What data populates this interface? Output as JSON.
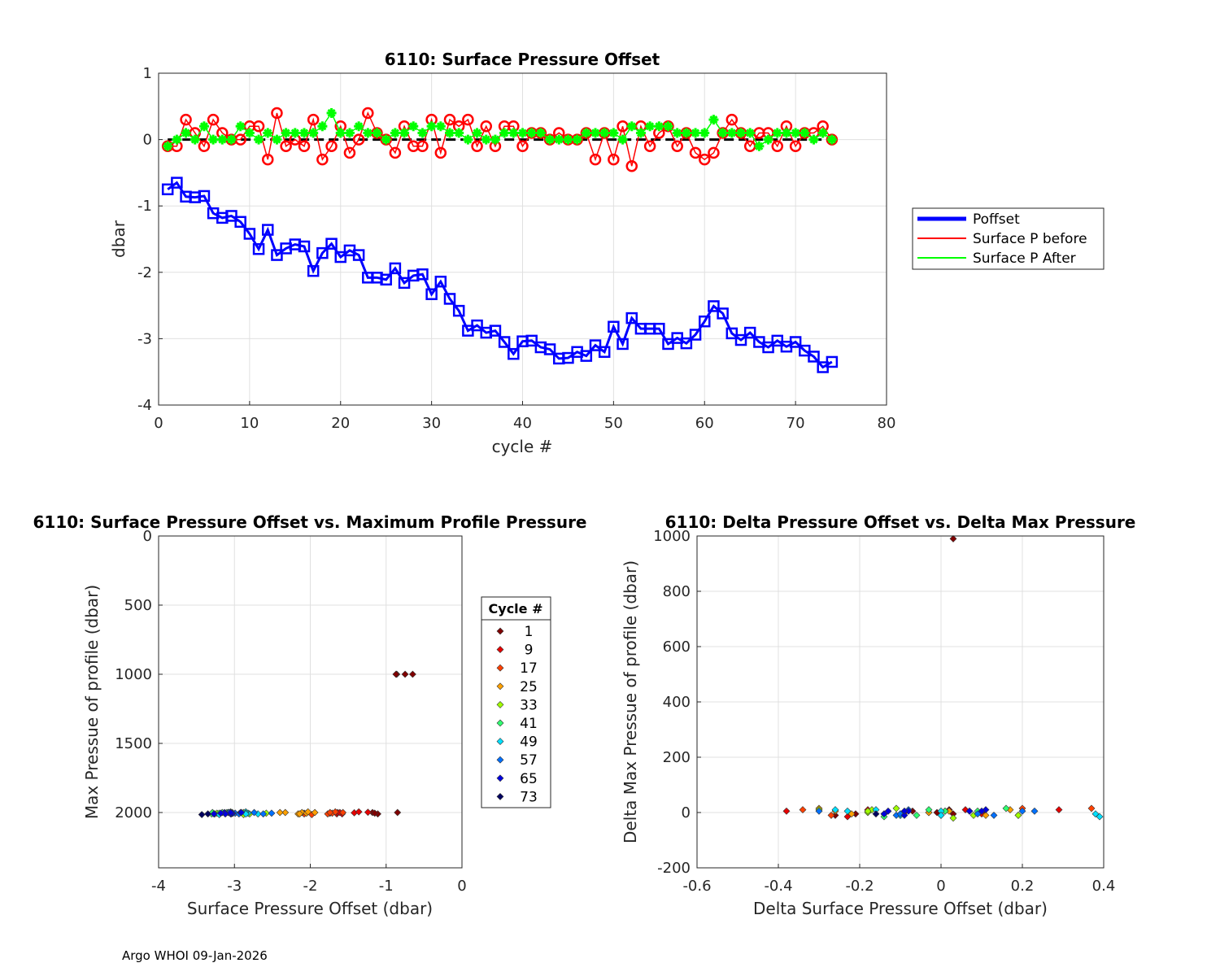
{
  "footer": "Argo WHOI 09-Jan-2026",
  "chart_data": [
    {
      "id": "top",
      "type": "line",
      "title": "6110: Surface Pressure Offset",
      "xlabel": "cycle #",
      "ylabel": "dbar",
      "xlim": [
        0,
        80
      ],
      "ylim": [
        -4,
        1
      ],
      "xticks": [
        0,
        10,
        20,
        30,
        40,
        50,
        60,
        70,
        80
      ],
      "yticks": [
        -4,
        -3,
        -2,
        -1,
        0,
        1
      ],
      "grid": true,
      "legend_position": "right",
      "reference_line": 0,
      "x": [
        1,
        2,
        3,
        4,
        5,
        6,
        7,
        8,
        9,
        10,
        11,
        12,
        13,
        14,
        15,
        16,
        17,
        18,
        19,
        20,
        21,
        22,
        23,
        24,
        25,
        26,
        27,
        28,
        29,
        30,
        31,
        32,
        33,
        34,
        35,
        36,
        37,
        38,
        39,
        40,
        41,
        42,
        43,
        44,
        45,
        46,
        47,
        48,
        49,
        50,
        51,
        52,
        53,
        54,
        55,
        56,
        57,
        58,
        59,
        60,
        61,
        62,
        63,
        64,
        65,
        66,
        67,
        68,
        69,
        70,
        71,
        72,
        73,
        74
      ],
      "series": [
        {
          "name": "Poffset",
          "color": "#0000ff",
          "marker": "square",
          "values": [
            -0.75,
            -0.65,
            -0.86,
            -0.87,
            -0.85,
            -1.11,
            -1.18,
            -1.15,
            -1.24,
            -1.42,
            -1.65,
            -1.36,
            -1.74,
            -1.64,
            -1.58,
            -1.61,
            -1.98,
            -1.71,
            -1.57,
            -1.77,
            -1.67,
            -1.74,
            -2.08,
            -2.08,
            -2.11,
            -1.94,
            -2.16,
            -2.05,
            -2.03,
            -2.33,
            -2.14,
            -2.4,
            -2.58,
            -2.88,
            -2.8,
            -2.91,
            -2.88,
            -3.05,
            -3.23,
            -3.04,
            -3.03,
            -3.13,
            -3.16,
            -3.3,
            -3.29,
            -3.2,
            -3.26,
            -3.1,
            -3.2,
            -2.82,
            -3.08,
            -2.69,
            -2.85,
            -2.85,
            -2.85,
            -3.08,
            -2.99,
            -3.07,
            -2.94,
            -2.74,
            -2.51,
            -2.62,
            -2.92,
            -3.02,
            -2.91,
            -3.05,
            -3.13,
            -3.03,
            -3.12,
            -3.05,
            -3.18,
            -3.27,
            -3.43,
            -3.35
          ]
        },
        {
          "name": "Surface P before",
          "color": "#ff0000",
          "marker": "circle",
          "values": [
            -0.1,
            -0.1,
            0.3,
            0.1,
            -0.1,
            0.3,
            0.1,
            0.0,
            0.0,
            0.2,
            0.2,
            -0.3,
            0.4,
            -0.1,
            0.0,
            -0.1,
            0.3,
            -0.3,
            -0.1,
            0.2,
            -0.2,
            0.0,
            0.4,
            0.1,
            0.0,
            -0.2,
            0.2,
            -0.1,
            -0.1,
            0.3,
            -0.2,
            0.3,
            0.2,
            0.3,
            -0.1,
            0.2,
            -0.1,
            0.2,
            0.2,
            -0.1,
            0.1,
            0.1,
            0.0,
            0.1,
            0.0,
            0.0,
            0.1,
            -0.3,
            0.1,
            -0.3,
            0.2,
            -0.4,
            0.2,
            -0.1,
            0.1,
            0.2,
            -0.1,
            0.1,
            -0.2,
            -0.3,
            -0.2,
            0.1,
            0.3,
            0.1,
            -0.1,
            0.1,
            0.1,
            -0.1,
            0.2,
            -0.1,
            0.1,
            0.1,
            0.2,
            0.0
          ]
        },
        {
          "name": "Surface P After",
          "color": "#00ff00",
          "marker": "asterisk",
          "values": [
            -0.1,
            0.0,
            0.1,
            0.0,
            0.2,
            0.0,
            0.0,
            0.0,
            0.2,
            0.1,
            0.0,
            0.1,
            0.0,
            0.1,
            0.1,
            0.1,
            0.1,
            0.2,
            0.4,
            0.1,
            0.1,
            0.2,
            0.1,
            0.1,
            0.0,
            0.1,
            0.1,
            0.2,
            0.1,
            0.2,
            0.2,
            0.1,
            0.1,
            0.0,
            0.1,
            0.0,
            0.0,
            0.1,
            0.1,
            0.1,
            0.1,
            0.1,
            0.0,
            0.0,
            0.0,
            0.0,
            0.1,
            0.1,
            0.1,
            0.1,
            0.0,
            0.2,
            0.1,
            0.2,
            0.2,
            0.2,
            0.1,
            0.1,
            0.1,
            0.1,
            0.3,
            0.1,
            0.1,
            0.1,
            0.1,
            -0.1,
            0.0,
            0.1,
            0.1,
            0.1,
            0.1,
            0.0,
            0.1,
            0.0
          ]
        }
      ]
    },
    {
      "id": "bottom_left",
      "type": "scatter",
      "title": "6110: Surface Pressure Offset vs. Maximum Profile Pressure",
      "xlabel": "Surface Pressure Offset (dbar)",
      "ylabel": "Max Pressue of profile (dbar)",
      "xlim": [
        -4,
        0
      ],
      "ylim": [
        2400,
        0
      ],
      "y_reversed": true,
      "xticks": [
        -4,
        -3,
        -2,
        -1,
        0
      ],
      "yticks": [
        0,
        500,
        1000,
        1500,
        2000
      ],
      "grid": true,
      "legend_title": "Cycle #",
      "legend_position": "right",
      "legend": [
        {
          "label": "1",
          "color": "#800000"
        },
        {
          "label": "9",
          "color": "#e60000"
        },
        {
          "label": "17",
          "color": "#ff4000"
        },
        {
          "label": "25",
          "color": "#ffa000"
        },
        {
          "label": "33",
          "color": "#a0ff00"
        },
        {
          "label": "41",
          "color": "#30ff70"
        },
        {
          "label": "49",
          "color": "#00e0ff"
        },
        {
          "label": "57",
          "color": "#0070ff"
        },
        {
          "label": "65",
          "color": "#0000e0"
        },
        {
          "label": "73",
          "color": "#000060"
        }
      ],
      "points_x": [
        -0.75,
        -0.65,
        -0.86,
        -0.87,
        -0.85,
        -1.11,
        -1.18,
        -1.15,
        -1.24,
        -1.42,
        -1.65,
        -1.36,
        -1.74,
        -1.64,
        -1.58,
        -1.61,
        -1.98,
        -1.71,
        -1.57,
        -1.77,
        -1.67,
        -1.74,
        -2.08,
        -2.08,
        -2.11,
        -1.94,
        -2.16,
        -2.05,
        -2.03,
        -2.33,
        -2.14,
        -2.4,
        -2.58,
        -2.88,
        -2.8,
        -2.91,
        -2.88,
        -3.05,
        -3.23,
        -3.04,
        -3.03,
        -3.13,
        -3.16,
        -3.3,
        -3.29,
        -3.2,
        -3.26,
        -3.1,
        -3.2,
        -2.82,
        -3.08,
        -2.69,
        -2.85,
        -2.85,
        -2.85,
        -3.08,
        -2.99,
        -3.07,
        -2.94,
        -2.74,
        -2.51,
        -2.62,
        -2.92,
        -3.02,
        -2.91,
        -3.05,
        -3.13,
        -3.03,
        -3.12,
        -3.05,
        -3.18,
        -3.27,
        -3.43,
        -3.35
      ],
      "points_y": [
        1000,
        1000,
        1000,
        1000,
        2000,
        2010,
        2000,
        2005,
        1998,
        2002,
        2010,
        1995,
        2005,
        2000,
        2010,
        2000,
        2015,
        2005,
        2000,
        2010,
        1995,
        2000,
        2005,
        2010,
        2000,
        2000,
        2010,
        2005,
        1995,
        2000,
        2010,
        2000,
        2005,
        2000,
        2010,
        2000,
        2015,
        1995,
        2005,
        2010,
        2000,
        2005,
        2000,
        2010,
        2000,
        2005,
        2010,
        2000,
        2015,
        2005,
        2000,
        2010,
        1995,
        2005,
        2010,
        2000,
        2005,
        2000,
        2010,
        2000,
        2005,
        2010,
        2000,
        2005,
        2000,
        2010,
        2000,
        2005,
        2010,
        2000,
        2005,
        2010,
        2015,
        2010
      ]
    },
    {
      "id": "bottom_right",
      "type": "scatter",
      "title": "6110: Delta Pressure Offset vs. Delta Max Pressure",
      "xlabel": "Delta Surface Pressure Offset (dbar)",
      "ylabel": "Delta Max Pressue of profile (dbar)",
      "xlim": [
        -0.6,
        0.4
      ],
      "ylim": [
        -200,
        1000
      ],
      "xticks": [
        -0.6,
        -0.4,
        -0.2,
        0,
        0.2,
        0.4
      ],
      "xtick_labels": [
        "-0.6",
        "-0.4",
        "-0.2",
        "0",
        "0.2",
        "0.4"
      ],
      "yticks": [
        -200,
        0,
        200,
        400,
        600,
        800,
        1000
      ],
      "grid": true,
      "points_x": [
        0.03,
        0.1,
        -0.21,
        -0.01,
        0.02,
        -0.26,
        -0.07,
        0.03,
        -0.09,
        -0.18,
        -0.23,
        0.29,
        -0.38,
        0.1,
        0.06,
        -0.03,
        0.37,
        -0.27,
        -0.14,
        0.2,
        -0.1,
        0.07,
        -0.34,
        0.0,
        -0.03,
        0.17,
        -0.22,
        0.11,
        0.02,
        -0.3,
        0.19,
        -0.26,
        -0.18,
        -0.3,
        0.08,
        -0.11,
        0.03,
        -0.17,
        -0.18,
        0.19,
        0.01,
        -0.1,
        -0.03,
        -0.14,
        0.01,
        0.09,
        -0.06,
        0.16,
        -0.1,
        0.38,
        -0.26,
        0.39,
        -0.16,
        0.0,
        0.0,
        -0.23,
        0.09,
        -0.08,
        0.13,
        0.2,
        0.23,
        -0.11,
        -0.3,
        -0.1,
        0.11,
        -0.14,
        -0.08,
        0.1,
        -0.09,
        0.07,
        -0.13,
        -0.09,
        -0.16
      ],
      "points_y": [
        990,
        0,
        -5,
        0,
        10,
        -10,
        5,
        -5,
        0,
        10,
        -15,
        10,
        5,
        -5,
        10,
        0,
        15,
        -10,
        -5,
        15,
        -10,
        5,
        10,
        -10,
        0,
        10,
        -5,
        -10,
        5,
        15,
        -10,
        5,
        0,
        10,
        -10,
        15,
        -20,
        10,
        5,
        -10,
        5,
        -5,
        10,
        -15,
        5,
        5,
        -10,
        15,
        -10,
        -5,
        10,
        -15,
        10,
        5,
        -10,
        5,
        -5,
        10,
        -10,
        5,
        5,
        -10,
        5,
        -5,
        10,
        -5,
        5,
        5,
        -10,
        5,
        5,
        5,
        -5
      ]
    }
  ]
}
